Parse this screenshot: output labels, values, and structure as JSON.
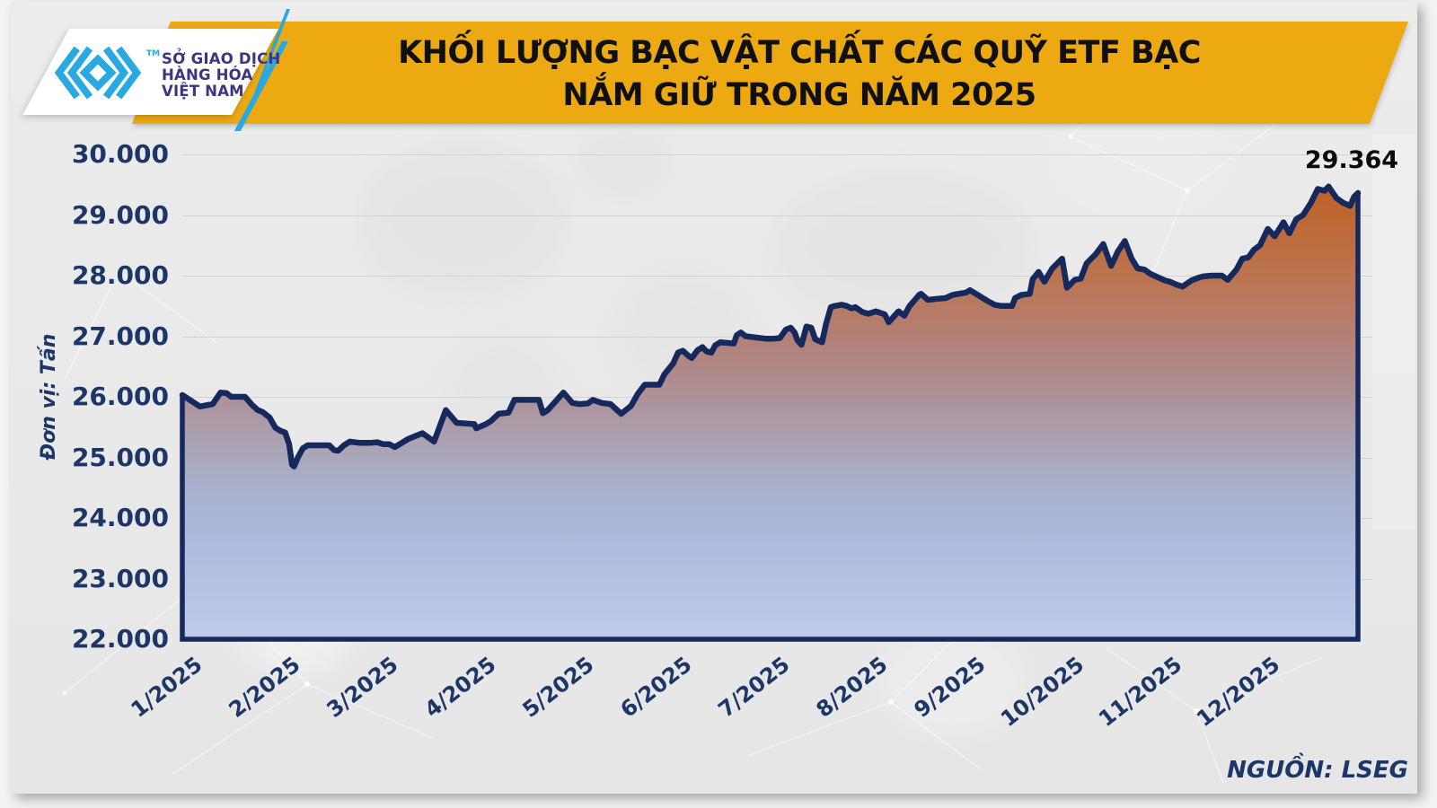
{
  "page": {
    "background": "#F3F3F3",
    "card_background": "#EAEAEA"
  },
  "brand": {
    "org_lines": [
      "SỞ GIAO DỊCH",
      "HÀNG HÓA",
      "VIỆT NAM"
    ],
    "tm": "TM",
    "mark_color": "#29A9E1",
    "text_color": "#3D3580"
  },
  "title": {
    "line1": "KHỐI LƯỢNG BẠC VẬT CHẤT CÁC QUỸ ETF BẠC",
    "line2": "NẮM GIỮ TRONG NĂM 2025",
    "banner_color": "#ECA912",
    "text_color": "#101010"
  },
  "annotation": {
    "last_value_label": "29.364"
  },
  "source": {
    "label": "NGUỒN: LSEG"
  },
  "axes": {
    "y_unit_label": "Đơn vị: Tấn",
    "y_ticks": [
      "30.000",
      "29.000",
      "28.000",
      "27.000",
      "26.000",
      "25.000",
      "24.000",
      "23.000",
      "22.000"
    ],
    "x_ticks": [
      "1/2025",
      "2/2025",
      "3/2025",
      "4/2025",
      "5/2025",
      "6/2025",
      "7/2025",
      "8/2025",
      "9/2025",
      "10/2025",
      "11/2025",
      "12/2025"
    ]
  },
  "chart_data": {
    "type": "area",
    "title": "KHỐI LƯỢNG BẠC VẬT CHẤT CÁC QUỸ ETF BẠC NẮM GIỮ TRONG NĂM 2025",
    "ylabel": "Đơn vị: Tấn",
    "unit": "tấn (tonnes)",
    "ylim": [
      22000,
      30000
    ],
    "y_tick_step": 1000,
    "x_range_months": [
      "1/2025",
      "12/2025"
    ],
    "grid": true,
    "legend": "none",
    "line_color": "#16295C",
    "fill_gradient": [
      "#C45A1E",
      "#BE6734",
      "#BC7450",
      "#B28077",
      "#AC9197",
      "#ABA3B4",
      "#A9AFCA",
      "#ADBBDF",
      "#BECBEB"
    ],
    "last_value": 29364,
    "points_format": "[month_position_0_to_12, tonnes]",
    "points": [
      [
        0,
        26030
      ],
      [
        0.18,
        25840
      ],
      [
        0.31,
        25880
      ],
      [
        0.39,
        26070
      ],
      [
        0.45,
        26060
      ],
      [
        0.5,
        26000
      ],
      [
        0.64,
        26000
      ],
      [
        0.71,
        25870
      ],
      [
        0.77,
        25780
      ],
      [
        0.82,
        25750
      ],
      [
        0.89,
        25660
      ],
      [
        0.95,
        25490
      ],
      [
        1,
        25440
      ],
      [
        1.05,
        25410
      ],
      [
        1.09,
        25220
      ],
      [
        1.12,
        24880
      ],
      [
        1.14,
        24850
      ],
      [
        1.18,
        25000
      ],
      [
        1.23,
        25150
      ],
      [
        1.28,
        25200
      ],
      [
        1.39,
        25200
      ],
      [
        1.5,
        25200
      ],
      [
        1.55,
        25120
      ],
      [
        1.59,
        25110
      ],
      [
        1.65,
        25200
      ],
      [
        1.71,
        25260
      ],
      [
        1.81,
        25240
      ],
      [
        1.92,
        25240
      ],
      [
        1.99,
        25250
      ],
      [
        2.05,
        25220
      ],
      [
        2.11,
        25220
      ],
      [
        2.17,
        25170
      ],
      [
        2.3,
        25300
      ],
      [
        2.45,
        25400
      ],
      [
        2.57,
        25260
      ],
      [
        2.69,
        25780
      ],
      [
        2.8,
        25570
      ],
      [
        2.98,
        25550
      ],
      [
        3,
        25480
      ],
      [
        3.1,
        25550
      ],
      [
        3.15,
        25600
      ],
      [
        3.23,
        25720
      ],
      [
        3.33,
        25740
      ],
      [
        3.39,
        25950
      ],
      [
        3.64,
        25950
      ],
      [
        3.68,
        25730
      ],
      [
        3.73,
        25780
      ],
      [
        3.89,
        26070
      ],
      [
        3.98,
        25900
      ],
      [
        4.05,
        25880
      ],
      [
        4.14,
        25890
      ],
      [
        4.19,
        25950
      ],
      [
        4.28,
        25900
      ],
      [
        4.37,
        25880
      ],
      [
        4.48,
        25720
      ],
      [
        4.58,
        25850
      ],
      [
        4.65,
        26050
      ],
      [
        4.72,
        26200
      ],
      [
        4.87,
        26200
      ],
      [
        4.92,
        26370
      ],
      [
        4.97,
        26470
      ],
      [
        5.01,
        26550
      ],
      [
        5.06,
        26730
      ],
      [
        5.11,
        26760
      ],
      [
        5.17,
        26670
      ],
      [
        5.2,
        26640
      ],
      [
        5.26,
        26770
      ],
      [
        5.31,
        26820
      ],
      [
        5.35,
        26750
      ],
      [
        5.4,
        26730
      ],
      [
        5.44,
        26850
      ],
      [
        5.49,
        26900
      ],
      [
        5.63,
        26880
      ],
      [
        5.66,
        27020
      ],
      [
        5.7,
        27060
      ],
      [
        5.75,
        27000
      ],
      [
        5.85,
        26980
      ],
      [
        5.95,
        26960
      ],
      [
        6.04,
        26960
      ],
      [
        6.1,
        26970
      ],
      [
        6.16,
        27110
      ],
      [
        6.21,
        27140
      ],
      [
        6.25,
        27060
      ],
      [
        6.28,
        26930
      ],
      [
        6.32,
        26860
      ],
      [
        6.37,
        27160
      ],
      [
        6.42,
        27140
      ],
      [
        6.46,
        26950
      ],
      [
        6.53,
        26900
      ],
      [
        6.57,
        27200
      ],
      [
        6.62,
        27480
      ],
      [
        6.66,
        27500
      ],
      [
        6.73,
        27520
      ],
      [
        6.78,
        27500
      ],
      [
        6.83,
        27460
      ],
      [
        6.87,
        27480
      ],
      [
        6.94,
        27400
      ],
      [
        7,
        27370
      ],
      [
        7.08,
        27410
      ],
      [
        7.17,
        27360
      ],
      [
        7.21,
        27230
      ],
      [
        7.31,
        27410
      ],
      [
        7.37,
        27340
      ],
      [
        7.42,
        27490
      ],
      [
        7.52,
        27680
      ],
      [
        7.54,
        27700
      ],
      [
        7.61,
        27600
      ],
      [
        7.72,
        27620
      ],
      [
        7.79,
        27630
      ],
      [
        7.86,
        27680
      ],
      [
        7.92,
        27700
      ],
      [
        8,
        27720
      ],
      [
        8.04,
        27760
      ],
      [
        8.1,
        27700
      ],
      [
        8.22,
        27580
      ],
      [
        8.29,
        27520
      ],
      [
        8.36,
        27500
      ],
      [
        8.47,
        27500
      ],
      [
        8.5,
        27630
      ],
      [
        8.56,
        27680
      ],
      [
        8.65,
        27700
      ],
      [
        8.68,
        27940
      ],
      [
        8.74,
        28060
      ],
      [
        8.8,
        27900
      ],
      [
        8.88,
        28120
      ],
      [
        8.93,
        28200
      ],
      [
        8.98,
        28280
      ],
      [
        9.03,
        27800
      ],
      [
        9.11,
        27930
      ],
      [
        9.17,
        27950
      ],
      [
        9.23,
        28200
      ],
      [
        9.32,
        28350
      ],
      [
        9.4,
        28520
      ],
      [
        9.48,
        28160
      ],
      [
        9.55,
        28400
      ],
      [
        9.62,
        28570
      ],
      [
        9.69,
        28280
      ],
      [
        9.75,
        28120
      ],
      [
        9.82,
        28100
      ],
      [
        9.88,
        28030
      ],
      [
        9.96,
        27970
      ],
      [
        10.03,
        27920
      ],
      [
        10.08,
        27900
      ],
      [
        10.15,
        27850
      ],
      [
        10.21,
        27820
      ],
      [
        10.3,
        27920
      ],
      [
        10.38,
        27970
      ],
      [
        10.43,
        27990
      ],
      [
        10.51,
        28000
      ],
      [
        10.61,
        28000
      ],
      [
        10.67,
        27930
      ],
      [
        10.76,
        28100
      ],
      [
        10.82,
        28280
      ],
      [
        10.88,
        28300
      ],
      [
        10.94,
        28430
      ],
      [
        11,
        28500
      ],
      [
        11.08,
        28770
      ],
      [
        11.15,
        28650
      ],
      [
        11.24,
        28880
      ],
      [
        11.3,
        28700
      ],
      [
        11.37,
        28930
      ],
      [
        11.44,
        29000
      ],
      [
        11.52,
        29200
      ],
      [
        11.59,
        29430
      ],
      [
        11.66,
        29400
      ],
      [
        11.7,
        29470
      ],
      [
        11.78,
        29280
      ],
      [
        11.85,
        29200
      ],
      [
        11.92,
        29150
      ],
      [
        11.96,
        29300
      ],
      [
        12,
        29364
      ]
    ]
  }
}
